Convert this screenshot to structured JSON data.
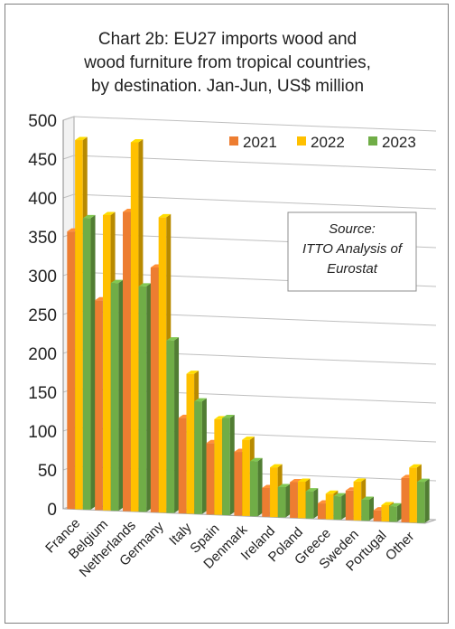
{
  "chart_data": {
    "type": "bar",
    "title_lines": [
      "Chart 2b: EU27 imports wood and",
      "wood furniture from tropical countries,",
      "by destination. Jan-Jun, US$ million"
    ],
    "categories": [
      "France",
      "Belgium",
      "Netherlands",
      "Germany",
      "Italy",
      "Spain",
      "Denmark",
      "Ireland",
      "Poland",
      "Greece",
      "Sweden",
      "Portugal",
      "Other"
    ],
    "series": [
      {
        "name": "2021",
        "color": "#ED7D31",
        "values": [
          357,
          270,
          385,
          315,
          123,
          92,
          82,
          37,
          46,
          20,
          38,
          14,
          57
        ]
      },
      {
        "name": "2022",
        "color": "#FFC000",
        "values": [
          475,
          380,
          475,
          380,
          180,
          123,
          98,
          64,
          47,
          33,
          50,
          21,
          71
        ]
      },
      {
        "name": "2023",
        "color": "#70AD47",
        "values": [
          375,
          293,
          290,
          222,
          145,
          125,
          71,
          39,
          35,
          30,
          27,
          20,
          53
        ]
      }
    ],
    "ylim": [
      0,
      500
    ],
    "yticks": [
      "0",
      "50",
      "100",
      "150",
      "200",
      "250",
      "300",
      "350",
      "400",
      "450",
      "500"
    ],
    "legend_position": "top-right",
    "grid": true,
    "annotation_lines": [
      "Source:",
      "ITTO Analysis of",
      "Eurostat"
    ]
  }
}
